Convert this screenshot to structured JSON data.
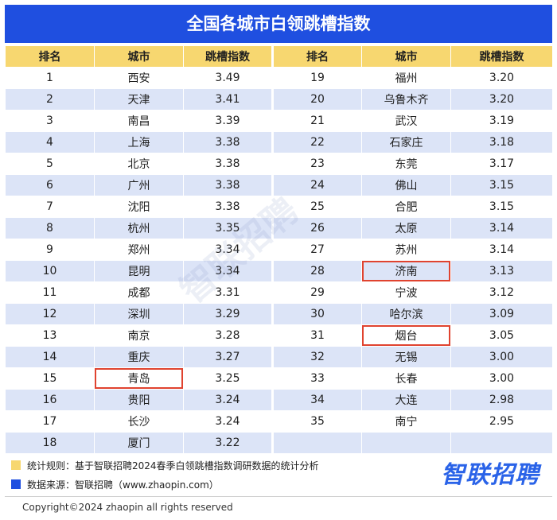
{
  "title": "全国各城市白领跳槽指数",
  "headers": [
    "排名",
    "城市",
    "跳槽指数",
    "排名",
    "城市",
    "跳槽指数"
  ],
  "left_rows": [
    {
      "rank": "1",
      "city": "西安",
      "index": "3.49"
    },
    {
      "rank": "2",
      "city": "天津",
      "index": "3.41"
    },
    {
      "rank": "3",
      "city": "南昌",
      "index": "3.39"
    },
    {
      "rank": "4",
      "city": "上海",
      "index": "3.38"
    },
    {
      "rank": "5",
      "city": "北京",
      "index": "3.38"
    },
    {
      "rank": "6",
      "city": "广州",
      "index": "3.38"
    },
    {
      "rank": "7",
      "city": "沈阳",
      "index": "3.38"
    },
    {
      "rank": "8",
      "city": "杭州",
      "index": "3.35"
    },
    {
      "rank": "9",
      "city": "郑州",
      "index": "3.34"
    },
    {
      "rank": "10",
      "city": "昆明",
      "index": "3.34"
    },
    {
      "rank": "11",
      "city": "成都",
      "index": "3.31"
    },
    {
      "rank": "12",
      "city": "深圳",
      "index": "3.29"
    },
    {
      "rank": "13",
      "city": "南京",
      "index": "3.28"
    },
    {
      "rank": "14",
      "city": "重庆",
      "index": "3.27"
    },
    {
      "rank": "15",
      "city": "青岛",
      "index": "3.25"
    },
    {
      "rank": "16",
      "city": "贵阳",
      "index": "3.24"
    },
    {
      "rank": "17",
      "city": "长沙",
      "index": "3.24"
    },
    {
      "rank": "18",
      "city": "厦门",
      "index": "3.22"
    }
  ],
  "right_rows": [
    {
      "rank": "19",
      "city": "福州",
      "index": "3.20"
    },
    {
      "rank": "20",
      "city": "乌鲁木齐",
      "index": "3.20"
    },
    {
      "rank": "21",
      "city": "武汉",
      "index": "3.19"
    },
    {
      "rank": "22",
      "city": "石家庄",
      "index": "3.18"
    },
    {
      "rank": "23",
      "city": "东莞",
      "index": "3.17"
    },
    {
      "rank": "24",
      "city": "佛山",
      "index": "3.15"
    },
    {
      "rank": "25",
      "city": "合肥",
      "index": "3.15"
    },
    {
      "rank": "26",
      "city": "太原",
      "index": "3.14"
    },
    {
      "rank": "27",
      "city": "苏州",
      "index": "3.14"
    },
    {
      "rank": "28",
      "city": "济南",
      "index": "3.13"
    },
    {
      "rank": "29",
      "city": "宁波",
      "index": "3.12"
    },
    {
      "rank": "30",
      "city": "哈尔滨",
      "index": "3.09"
    },
    {
      "rank": "31",
      "city": "烟台",
      "index": "3.05"
    },
    {
      "rank": "32",
      "city": "无锡",
      "index": "3.00"
    },
    {
      "rank": "33",
      "city": "长春",
      "index": "3.00"
    },
    {
      "rank": "34",
      "city": "大连",
      "index": "2.98"
    },
    {
      "rank": "35",
      "city": "南宁",
      "index": "2.95"
    },
    {
      "rank": "",
      "city": "",
      "index": ""
    }
  ],
  "highlighted_cities": [
    "青岛",
    "济南",
    "烟台"
  ],
  "highlight_color": "#e0432f",
  "header_color": "#f7d770",
  "title_color": "#1f4fe0",
  "stripe_color": "#dce4f7",
  "notes": [
    {
      "swatch": "yellow",
      "text": "统计规则：基于智联招聘2024春季白领跳槽指数调研数据的统计分析"
    },
    {
      "swatch": "blue",
      "text": "数据来源：智联招聘（www.zhaopin.com）"
    }
  ],
  "logo": "智联招聘",
  "watermark": "智联招聘",
  "copyright": "Copyright©2024 zhaopin all rights reserved",
  "chart_data": {
    "type": "table",
    "title": "全国各城市白领跳槽指数",
    "columns": [
      "排名",
      "城市",
      "跳槽指数"
    ],
    "rows": [
      [
        1,
        "西安",
        3.49
      ],
      [
        2,
        "天津",
        3.41
      ],
      [
        3,
        "南昌",
        3.39
      ],
      [
        4,
        "上海",
        3.38
      ],
      [
        5,
        "北京",
        3.38
      ],
      [
        6,
        "广州",
        3.38
      ],
      [
        7,
        "沈阳",
        3.38
      ],
      [
        8,
        "杭州",
        3.35
      ],
      [
        9,
        "郑州",
        3.34
      ],
      [
        10,
        "昆明",
        3.34
      ],
      [
        11,
        "成都",
        3.31
      ],
      [
        12,
        "深圳",
        3.29
      ],
      [
        13,
        "南京",
        3.28
      ],
      [
        14,
        "重庆",
        3.27
      ],
      [
        15,
        "青岛",
        3.25
      ],
      [
        16,
        "贵阳",
        3.24
      ],
      [
        17,
        "长沙",
        3.24
      ],
      [
        18,
        "厦门",
        3.22
      ],
      [
        19,
        "福州",
        3.2
      ],
      [
        20,
        "乌鲁木齐",
        3.2
      ],
      [
        21,
        "武汉",
        3.19
      ],
      [
        22,
        "石家庄",
        3.18
      ],
      [
        23,
        "东莞",
        3.17
      ],
      [
        24,
        "佛山",
        3.15
      ],
      [
        25,
        "合肥",
        3.15
      ],
      [
        26,
        "太原",
        3.14
      ],
      [
        27,
        "苏州",
        3.14
      ],
      [
        28,
        "济南",
        3.13
      ],
      [
        29,
        "宁波",
        3.12
      ],
      [
        30,
        "哈尔滨",
        3.09
      ],
      [
        31,
        "烟台",
        3.05
      ],
      [
        32,
        "无锡",
        3.0
      ],
      [
        33,
        "长春",
        3.0
      ],
      [
        34,
        "大连",
        2.98
      ],
      [
        35,
        "南宁",
        2.95
      ]
    ]
  }
}
